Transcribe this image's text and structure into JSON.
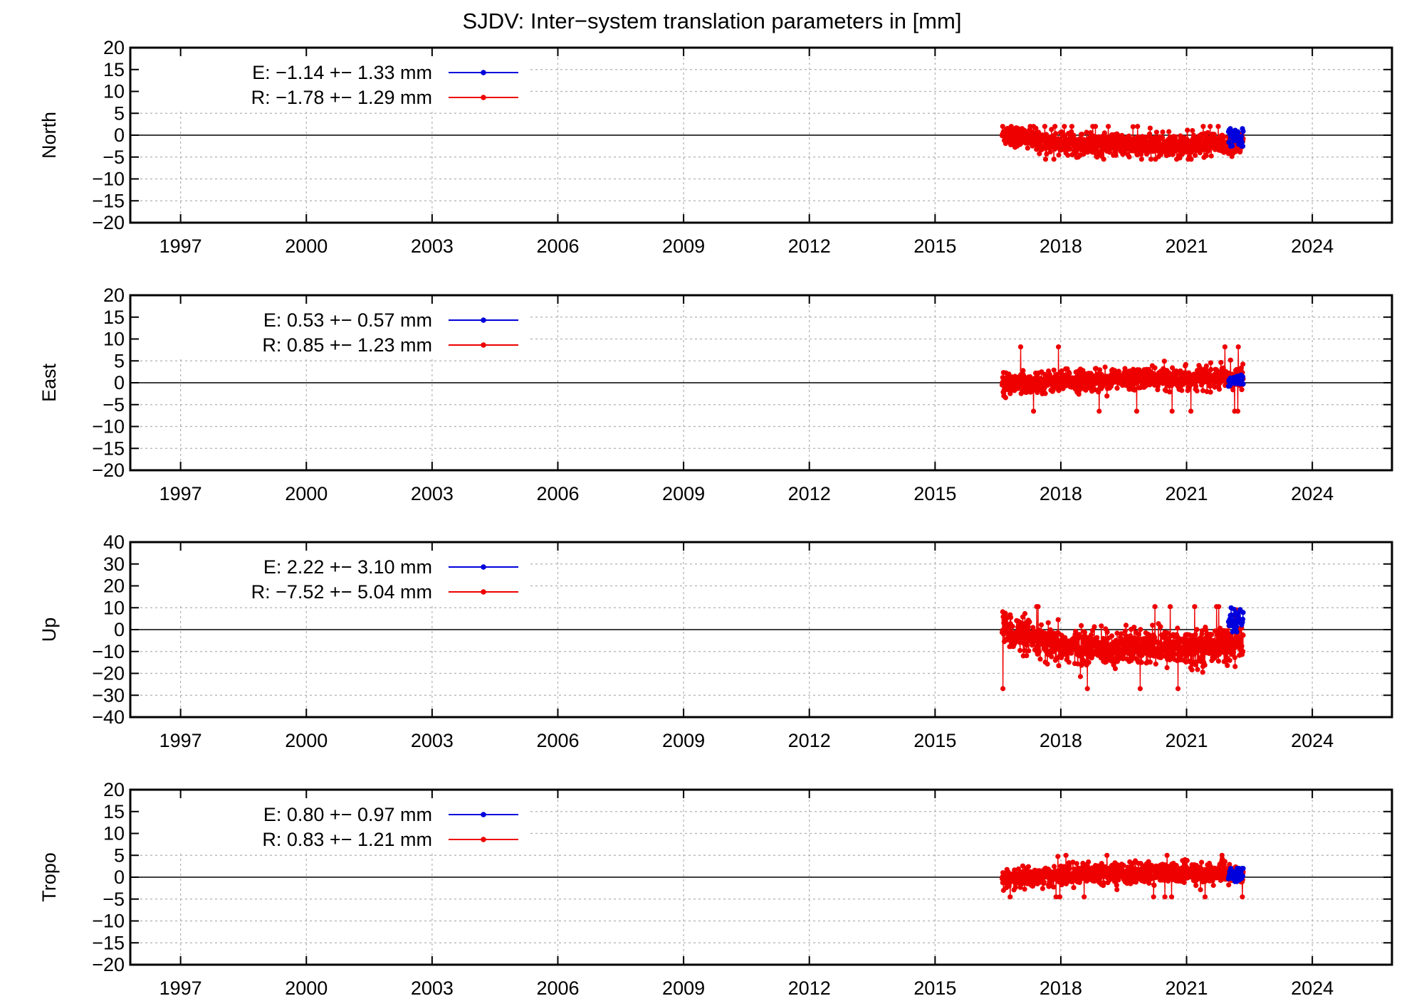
{
  "title": "SJDV: Inter−system translation parameters in [mm]",
  "colors": {
    "E": "#0000dd",
    "R": "#ee0000",
    "axis": "#000000",
    "grid": "#b0b0b0"
  },
  "chart_data": [
    {
      "type": "scatter",
      "ylabel": "North",
      "xlabel": "",
      "xlim": [
        1995.8,
        2025.9
      ],
      "xticks": [
        1997,
        2000,
        2003,
        2006,
        2009,
        2012,
        2015,
        2018,
        2021,
        2024
      ],
      "ylim": [
        -20,
        20
      ],
      "yticks": [
        -20,
        -15,
        -10,
        -5,
        0,
        5,
        10,
        15,
        20
      ],
      "grid": true,
      "legend_position": "top-left",
      "legend": [
        {
          "label": "E:  −1.14 +− 1.33 mm",
          "color": "#0000dd"
        },
        {
          "label": "R:  −1.78 +− 1.29 mm",
          "color": "#ee0000"
        }
      ],
      "series": [
        {
          "name": "R",
          "color": "#ee0000",
          "x_start": 2016.6,
          "x_end": 2022.35,
          "trend": [
            [
              2016.6,
              0.3
            ],
            [
              2017.3,
              -0.8
            ],
            [
              2018.0,
              -1.8
            ],
            [
              2019.5,
              -2.3
            ],
            [
              2021.0,
              -2.5
            ],
            [
              2022.35,
              -2.0
            ]
          ],
          "spread": 1.3,
          "min": -5.5,
          "max": 2.0
        },
        {
          "name": "E",
          "color": "#0000dd",
          "x_start": 2022.0,
          "x_end": 2022.35,
          "trend": [
            [
              2022.0,
              0.5
            ],
            [
              2022.35,
              -1.0
            ]
          ],
          "spread": 1.3,
          "min": -2.5,
          "max": 1.5
        }
      ]
    },
    {
      "type": "scatter",
      "ylabel": "East",
      "xlabel": "",
      "xlim": [
        1995.8,
        2025.9
      ],
      "xticks": [
        1997,
        2000,
        2003,
        2006,
        2009,
        2012,
        2015,
        2018,
        2021,
        2024
      ],
      "ylim": [
        -20,
        20
      ],
      "yticks": [
        -20,
        -15,
        -10,
        -5,
        0,
        5,
        10,
        15,
        20
      ],
      "grid": true,
      "legend_position": "top-left",
      "legend": [
        {
          "label": "E:   0.53 +− 0.57 mm",
          "color": "#0000dd"
        },
        {
          "label": "R:   0.85 +− 1.23 mm",
          "color": "#ee0000"
        }
      ],
      "series": [
        {
          "name": "R",
          "color": "#ee0000",
          "x_start": 2016.6,
          "x_end": 2022.35,
          "trend": [
            [
              2016.6,
              -0.3
            ],
            [
              2018.0,
              0.4
            ],
            [
              2020.0,
              1.0
            ],
            [
              2022.35,
              1.1
            ]
          ],
          "spread": 1.2,
          "min": -6.5,
          "max": 8.2
        },
        {
          "name": "E",
          "color": "#0000dd",
          "x_start": 2022.0,
          "x_end": 2022.35,
          "trend": [
            [
              2022.0,
              0.5
            ],
            [
              2022.35,
              0.6
            ]
          ],
          "spread": 0.6,
          "min": -0.8,
          "max": 1.8
        }
      ]
    },
    {
      "type": "scatter",
      "ylabel": "Up",
      "xlabel": "",
      "xlim": [
        1995.8,
        2025.9
      ],
      "xticks": [
        1997,
        2000,
        2003,
        2006,
        2009,
        2012,
        2015,
        2018,
        2021,
        2024
      ],
      "ylim": [
        -40,
        40
      ],
      "yticks": [
        -40,
        -30,
        -20,
        -10,
        0,
        10,
        20,
        30,
        40
      ],
      "grid": true,
      "legend_position": "top-left",
      "legend": [
        {
          "label": "E:   2.22 +− 3.10 mm",
          "color": "#0000dd"
        },
        {
          "label": "R:  −7.52 +− 5.04 mm",
          "color": "#ee0000"
        }
      ],
      "series": [
        {
          "name": "R",
          "color": "#ee0000",
          "x_start": 2016.6,
          "x_end": 2022.35,
          "trend": [
            [
              2016.6,
              1.0
            ],
            [
              2017.2,
              -4.0
            ],
            [
              2017.8,
              -8.0
            ],
            [
              2019.5,
              -8.5
            ],
            [
              2021.0,
              -8.0
            ],
            [
              2022.35,
              -6.0
            ]
          ],
          "spread": 4.0,
          "min": -27.0,
          "max": 10.5
        },
        {
          "name": "E",
          "color": "#0000dd",
          "x_start": 2022.0,
          "x_end": 2022.35,
          "trend": [
            [
              2022.0,
              3.0
            ],
            [
              2022.35,
              4.0
            ]
          ],
          "spread": 3.0,
          "min": -1.0,
          "max": 10.0
        }
      ]
    },
    {
      "type": "scatter",
      "ylabel": "Tropo",
      "xlabel": "",
      "xlim": [
        1995.8,
        2025.9
      ],
      "xticks": [
        1997,
        2000,
        2003,
        2006,
        2009,
        2012,
        2015,
        2018,
        2021,
        2024
      ],
      "ylim": [
        -20,
        20
      ],
      "yticks": [
        -20,
        -15,
        -10,
        -5,
        0,
        5,
        10,
        15,
        20
      ],
      "grid": true,
      "legend_position": "top-left",
      "legend": [
        {
          "label": "E:   0.80 +− 0.97 mm",
          "color": "#0000dd"
        },
        {
          "label": "R:   0.83 +− 1.21 mm",
          "color": "#ee0000"
        }
      ],
      "series": [
        {
          "name": "R",
          "color": "#ee0000",
          "x_start": 2016.6,
          "x_end": 2022.35,
          "trend": [
            [
              2016.6,
              -0.5
            ],
            [
              2018.0,
              0.5
            ],
            [
              2020.0,
              1.0
            ],
            [
              2022.35,
              0.8
            ]
          ],
          "spread": 1.2,
          "min": -4.5,
          "max": 5.0
        },
        {
          "name": "E",
          "color": "#0000dd",
          "x_start": 2022.0,
          "x_end": 2022.35,
          "trend": [
            [
              2022.0,
              0.5
            ],
            [
              2022.35,
              0.8
            ]
          ],
          "spread": 0.8,
          "min": -1.0,
          "max": 2.0
        }
      ]
    }
  ]
}
